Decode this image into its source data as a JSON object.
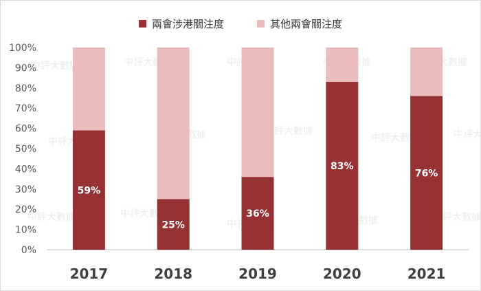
{
  "chart_data": {
    "type": "bar",
    "stacked": true,
    "categories": [
      "2017",
      "2018",
      "2019",
      "2020",
      "2021"
    ],
    "series": [
      {
        "name": "兩會涉港關注度",
        "values": [
          59,
          25,
          36,
          83,
          76
        ],
        "color": "#963234"
      },
      {
        "name": "其他兩會關注度",
        "values": [
          41,
          75,
          64,
          17,
          24
        ],
        "color": "#ebbcbd"
      }
    ],
    "data_labels": [
      "59%",
      "25%",
      "36%",
      "83%",
      "76%"
    ],
    "yticks": [
      "0%",
      "10%",
      "20%",
      "30%",
      "40%",
      "50%",
      "60%",
      "70%",
      "80%",
      "90%",
      "100%"
    ],
    "ylim": [
      0,
      100
    ],
    "legend_position": "top",
    "grid": false
  },
  "watermark": "中評大數據"
}
